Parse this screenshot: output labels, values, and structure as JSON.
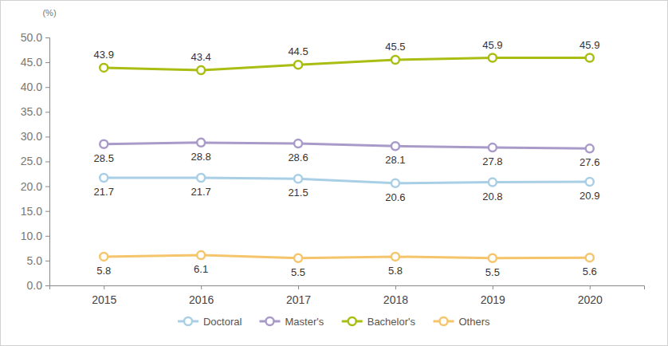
{
  "chart_data": {
    "type": "line",
    "y_label": "(%)",
    "categories": [
      "2015",
      "2016",
      "2017",
      "2018",
      "2019",
      "2020"
    ],
    "series": [
      {
        "name": "Doctoral",
        "color": "#a9cfe6",
        "marker": "circle",
        "values": [
          21.7,
          21.7,
          21.5,
          20.6,
          20.8,
          20.9
        ]
      },
      {
        "name": "Master's",
        "color": "#a99bc9",
        "marker": "circle",
        "values": [
          28.5,
          28.8,
          28.6,
          28.1,
          27.8,
          27.6
        ]
      },
      {
        "name": "Bachelor's",
        "color": "#a9bd12",
        "marker": "circle",
        "values": [
          43.9,
          43.4,
          44.5,
          45.5,
          45.9,
          45.9
        ]
      },
      {
        "name": "Others",
        "color": "#f5c56c",
        "marker": "circle",
        "values": [
          5.8,
          6.1,
          5.5,
          5.8,
          5.5,
          5.6
        ]
      }
    ],
    "ylim": [
      0,
      50
    ],
    "yticks": [
      {
        "value": 0,
        "label": "0.0"
      },
      {
        "value": 5,
        "label": "5.0"
      },
      {
        "value": 10,
        "label": "10.0"
      },
      {
        "value": 15,
        "label": "15.0"
      },
      {
        "value": 20,
        "label": "20.0"
      },
      {
        "value": 25,
        "label": "25.0"
      },
      {
        "value": 30,
        "label": "30.0"
      },
      {
        "value": 35,
        "label": "35.0"
      },
      {
        "value": 40,
        "label": "40.0"
      },
      {
        "value": 45,
        "label": "45.0"
      },
      {
        "value": 50,
        "label": "50.0"
      }
    ],
    "grid": false,
    "legend": "bottom",
    "data_labels": true
  }
}
